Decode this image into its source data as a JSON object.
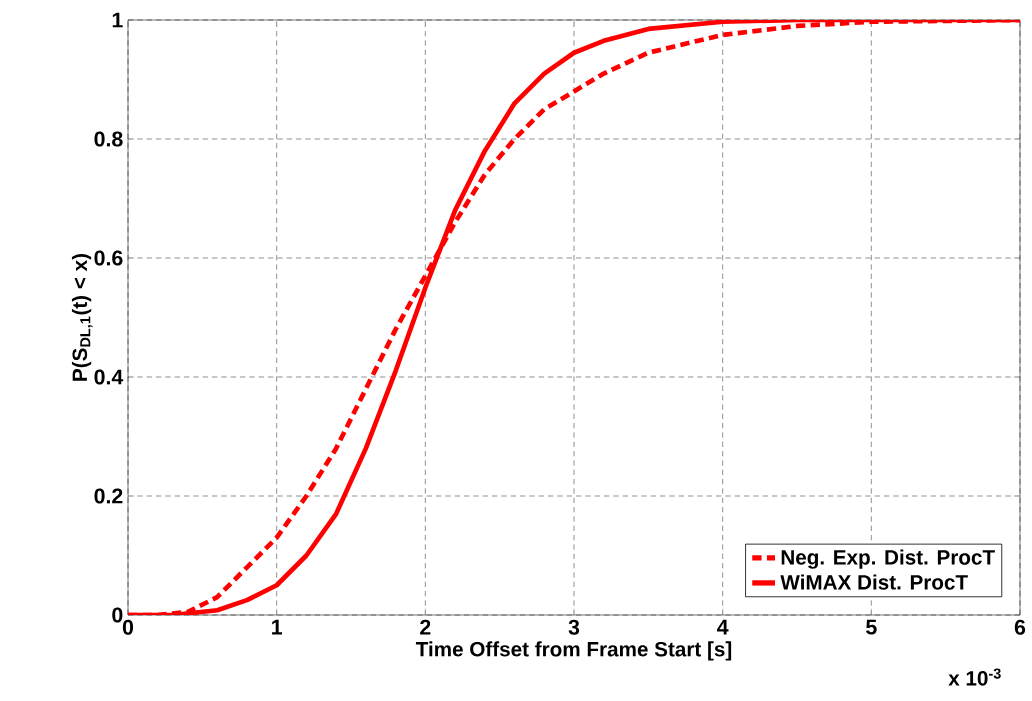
{
  "chart_data": {
    "type": "line",
    "xlabel": "Time Offset from Frame Start [s]",
    "ylabel": "P(S$_{DL,1}$(t) < x)",
    "annotations": [
      "x 10$^{-3}$"
    ],
    "xlim": [
      0,
      6
    ],
    "xticks": [
      0,
      1,
      2,
      3,
      4,
      5,
      6
    ],
    "ylim": [
      0,
      1
    ],
    "yticks": [
      0,
      0.2,
      0.4,
      0.6,
      0.8,
      1
    ],
    "grid": true,
    "legend": "bottom right",
    "series": [
      {
        "name": "Neg. Exp. Dist. ProcT",
        "color": "#ff0000",
        "line_style": "dashed",
        "x": [
          0,
          0.2,
          0.4,
          0.6,
          0.8,
          1.0,
          1.2,
          1.4,
          1.6,
          1.8,
          2.0,
          2.2,
          2.4,
          2.6,
          2.8,
          3.0,
          3.2,
          3.5,
          4.0,
          4.5,
          5.0,
          6.0
        ],
        "values": [
          0,
          0,
          0.005,
          0.03,
          0.08,
          0.13,
          0.2,
          0.28,
          0.38,
          0.48,
          0.57,
          0.66,
          0.74,
          0.8,
          0.85,
          0.88,
          0.91,
          0.945,
          0.975,
          0.99,
          0.997,
          1
        ]
      },
      {
        "name": "WiMAX Dist. ProcT",
        "color": "#ff0000",
        "line_style": "solid",
        "x": [
          0,
          0.3,
          0.6,
          0.8,
          1.0,
          1.2,
          1.4,
          1.6,
          1.8,
          2.0,
          2.2,
          2.4,
          2.6,
          2.8,
          3.0,
          3.2,
          3.5,
          4.0,
          4.5,
          6.0
        ],
        "values": [
          0,
          0,
          0.008,
          0.025,
          0.05,
          0.1,
          0.17,
          0.28,
          0.41,
          0.55,
          0.68,
          0.78,
          0.86,
          0.91,
          0.945,
          0.965,
          0.985,
          0.997,
          1,
          1
        ]
      }
    ]
  }
}
